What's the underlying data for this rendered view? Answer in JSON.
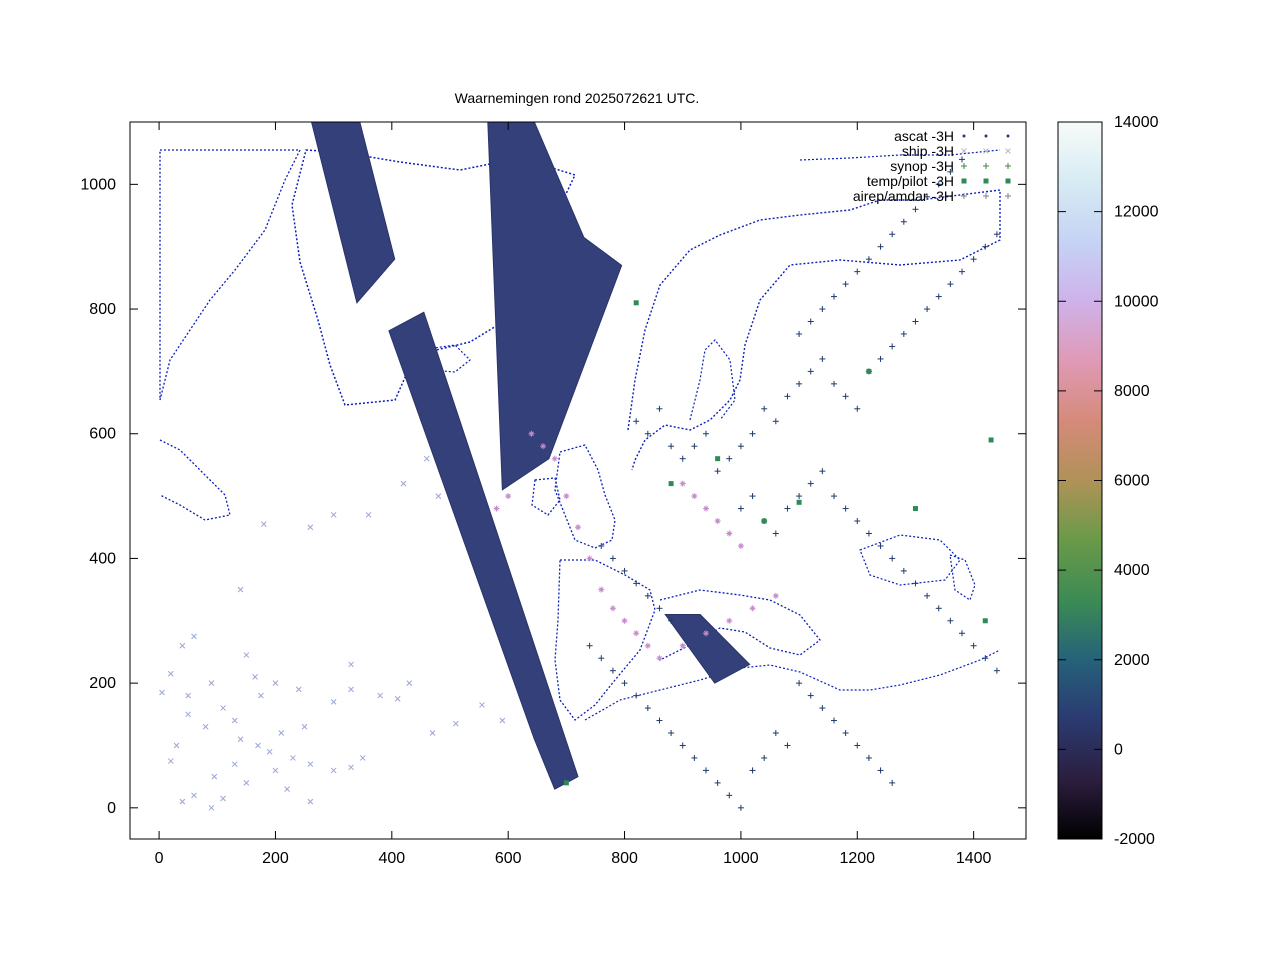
{
  "chart_data": {
    "type": "scatter",
    "title": "Waarnemingen rond 2025072621 UTC.",
    "xlim": [
      -50,
      1490
    ],
    "ylim": [
      -50,
      1100
    ],
    "xticks": [
      0,
      200,
      400,
      600,
      800,
      1000,
      1200,
      1400
    ],
    "yticks": [
      0,
      200,
      400,
      600,
      800,
      1000
    ],
    "grid": false,
    "legend_position": "top-right",
    "legend": [
      {
        "label": "ascat -3H",
        "color": "#2a3a6e",
        "symbol": "dot"
      },
      {
        "label": "ship -3H",
        "color": "#b8b8c8",
        "symbol": "cross"
      },
      {
        "label": "synop -3H",
        "color": "#3a8a3a",
        "symbol": "plus"
      },
      {
        "label": "temp/pilot -3H",
        "color": "#2e8b57",
        "symbol": "square"
      },
      {
        "label": "airep/amdar -3H",
        "color": "#808080",
        "symbol": "asterisk"
      }
    ],
    "colorbar": {
      "range": [
        -2000,
        14000
      ],
      "ticks": [
        14000,
        12000,
        10000,
        8000,
        6000,
        4000,
        2000,
        0,
        -2000
      ]
    },
    "series": [
      {
        "name": "ascat -3H",
        "swaths": [
          {
            "polygon": [
              [
                262,
                1100
              ],
              [
                345,
                1100
              ],
              [
                405,
                880
              ],
              [
                340,
                810
              ]
            ]
          },
          {
            "polygon": [
              [
                565,
                1100
              ],
              [
                645,
                1100
              ],
              [
                730,
                915
              ],
              [
                795,
                870
              ],
              [
                670,
                560
              ],
              [
                590,
                510
              ]
            ]
          },
          {
            "polygon": [
              [
                395,
                765
              ],
              [
                455,
                795
              ],
              [
                720,
                50
              ],
              [
                680,
                30
              ],
              [
                645,
                110
              ]
            ]
          },
          {
            "polygon": [
              [
                870,
                310
              ],
              [
                930,
                310
              ],
              [
                1015,
                230
              ],
              [
                955,
                200
              ]
            ]
          }
        ]
      },
      {
        "name": "ship -3H",
        "points": [
          [
            5,
            185
          ],
          [
            20,
            215
          ],
          [
            50,
            180
          ],
          [
            80,
            130
          ],
          [
            90,
            200
          ],
          [
            110,
            160
          ],
          [
            130,
            140
          ],
          [
            165,
            210
          ],
          [
            175,
            180
          ],
          [
            210,
            120
          ],
          [
            230,
            80
          ],
          [
            250,
            130
          ],
          [
            40,
            10
          ],
          [
            95,
            50
          ],
          [
            110,
            15
          ],
          [
            150,
            40
          ],
          [
            170,
            100
          ],
          [
            220,
            30
          ],
          [
            260,
            70
          ],
          [
            300,
            60
          ],
          [
            330,
            65
          ],
          [
            350,
            80
          ],
          [
            20,
            75
          ],
          [
            30,
            100
          ],
          [
            60,
            20
          ],
          [
            90,
            0
          ],
          [
            130,
            70
          ],
          [
            190,
            90
          ],
          [
            260,
            10
          ],
          [
            50,
            150
          ],
          [
            140,
            110
          ],
          [
            200,
            60
          ],
          [
            240,
            190
          ],
          [
            300,
            170
          ],
          [
            330,
            190
          ],
          [
            380,
            180
          ],
          [
            410,
            175
          ],
          [
            430,
            200
          ],
          [
            470,
            120
          ],
          [
            510,
            135
          ],
          [
            555,
            165
          ],
          [
            590,
            140
          ],
          [
            40,
            260
          ],
          [
            60,
            275
          ],
          [
            150,
            245
          ],
          [
            200,
            200
          ],
          [
            140,
            350
          ],
          [
            180,
            455
          ],
          [
            260,
            450
          ],
          [
            300,
            470
          ],
          [
            330,
            230
          ],
          [
            360,
            470
          ],
          [
            420,
            520
          ],
          [
            460,
            560
          ],
          [
            480,
            500
          ]
        ]
      },
      {
        "name": "synop -3H",
        "points": [
          [
            820,
            620
          ],
          [
            840,
            600
          ],
          [
            860,
            640
          ],
          [
            880,
            580
          ],
          [
            900,
            560
          ],
          [
            920,
            580
          ],
          [
            940,
            600
          ],
          [
            960,
            540
          ],
          [
            980,
            560
          ],
          [
            1000,
            580
          ],
          [
            1020,
            600
          ],
          [
            1040,
            640
          ],
          [
            1060,
            620
          ],
          [
            1080,
            660
          ],
          [
            1100,
            680
          ],
          [
            1120,
            700
          ],
          [
            1140,
            720
          ],
          [
            1160,
            680
          ],
          [
            1180,
            660
          ],
          [
            1200,
            640
          ],
          [
            1220,
            700
          ],
          [
            1240,
            720
          ],
          [
            1260,
            740
          ],
          [
            1280,
            760
          ],
          [
            1300,
            780
          ],
          [
            1320,
            800
          ],
          [
            1340,
            820
          ],
          [
            1360,
            840
          ],
          [
            1380,
            860
          ],
          [
            1400,
            880
          ],
          [
            1420,
            900
          ],
          [
            1440,
            920
          ],
          [
            1100,
            760
          ],
          [
            1120,
            780
          ],
          [
            1140,
            800
          ],
          [
            1160,
            820
          ],
          [
            1180,
            840
          ],
          [
            1200,
            860
          ],
          [
            1220,
            880
          ],
          [
            1240,
            900
          ],
          [
            1260,
            920
          ],
          [
            1280,
            940
          ],
          [
            1300,
            960
          ],
          [
            1320,
            980
          ],
          [
            1340,
            1000
          ],
          [
            1360,
            1020
          ],
          [
            1380,
            1040
          ],
          [
            1000,
            480
          ],
          [
            1020,
            500
          ],
          [
            1040,
            460
          ],
          [
            1060,
            440
          ],
          [
            1080,
            480
          ],
          [
            1100,
            500
          ],
          [
            1120,
            520
          ],
          [
            1140,
            540
          ],
          [
            1160,
            500
          ],
          [
            1180,
            480
          ],
          [
            1200,
            460
          ],
          [
            1220,
            440
          ],
          [
            1240,
            420
          ],
          [
            1260,
            400
          ],
          [
            1280,
            380
          ],
          [
            1300,
            360
          ],
          [
            1320,
            340
          ],
          [
            1340,
            320
          ],
          [
            1360,
            300
          ],
          [
            1380,
            280
          ],
          [
            1400,
            260
          ],
          [
            1420,
            240
          ],
          [
            1440,
            220
          ],
          [
            760,
            420
          ],
          [
            780,
            400
          ],
          [
            800,
            380
          ],
          [
            820,
            360
          ],
          [
            840,
            340
          ],
          [
            860,
            320
          ],
          [
            880,
            300
          ],
          [
            740,
            260
          ],
          [
            760,
            240
          ],
          [
            780,
            220
          ],
          [
            800,
            200
          ],
          [
            820,
            180
          ],
          [
            840,
            160
          ],
          [
            860,
            140
          ],
          [
            880,
            120
          ],
          [
            900,
            100
          ],
          [
            920,
            80
          ],
          [
            940,
            60
          ],
          [
            960,
            40
          ],
          [
            980,
            20
          ],
          [
            1000,
            0
          ],
          [
            1100,
            200
          ],
          [
            1120,
            180
          ],
          [
            1140,
            160
          ],
          [
            1160,
            140
          ],
          [
            1180,
            120
          ],
          [
            1200,
            100
          ],
          [
            1220,
            80
          ],
          [
            1240,
            60
          ],
          [
            1260,
            40
          ],
          [
            1060,
            120
          ],
          [
            1080,
            100
          ],
          [
            1040,
            80
          ],
          [
            1020,
            60
          ]
        ]
      },
      {
        "name": "temp/pilot -3H",
        "points": [
          [
            700,
            40
          ],
          [
            820,
            810
          ],
          [
            880,
            520
          ],
          [
            960,
            560
          ],
          [
            1040,
            460
          ],
          [
            1100,
            490
          ],
          [
            1220,
            700
          ],
          [
            1300,
            480
          ],
          [
            1430,
            590
          ],
          [
            1420,
            300
          ]
        ]
      },
      {
        "name": "airep/amdar -3H",
        "points": [
          [
            700,
            500
          ],
          [
            720,
            450
          ],
          [
            740,
            400
          ],
          [
            760,
            350
          ],
          [
            780,
            320
          ],
          [
            800,
            300
          ],
          [
            820,
            280
          ],
          [
            840,
            260
          ],
          [
            860,
            240
          ],
          [
            900,
            260
          ],
          [
            940,
            280
          ],
          [
            980,
            300
          ],
          [
            1020,
            320
          ],
          [
            1060,
            340
          ],
          [
            900,
            520
          ],
          [
            920,
            500
          ],
          [
            940,
            480
          ],
          [
            960,
            460
          ],
          [
            980,
            440
          ],
          [
            1000,
            420
          ],
          [
            640,
            600
          ],
          [
            660,
            580
          ],
          [
            680,
            560
          ],
          [
            600,
            500
          ],
          [
            580,
            480
          ]
        ]
      }
    ]
  }
}
